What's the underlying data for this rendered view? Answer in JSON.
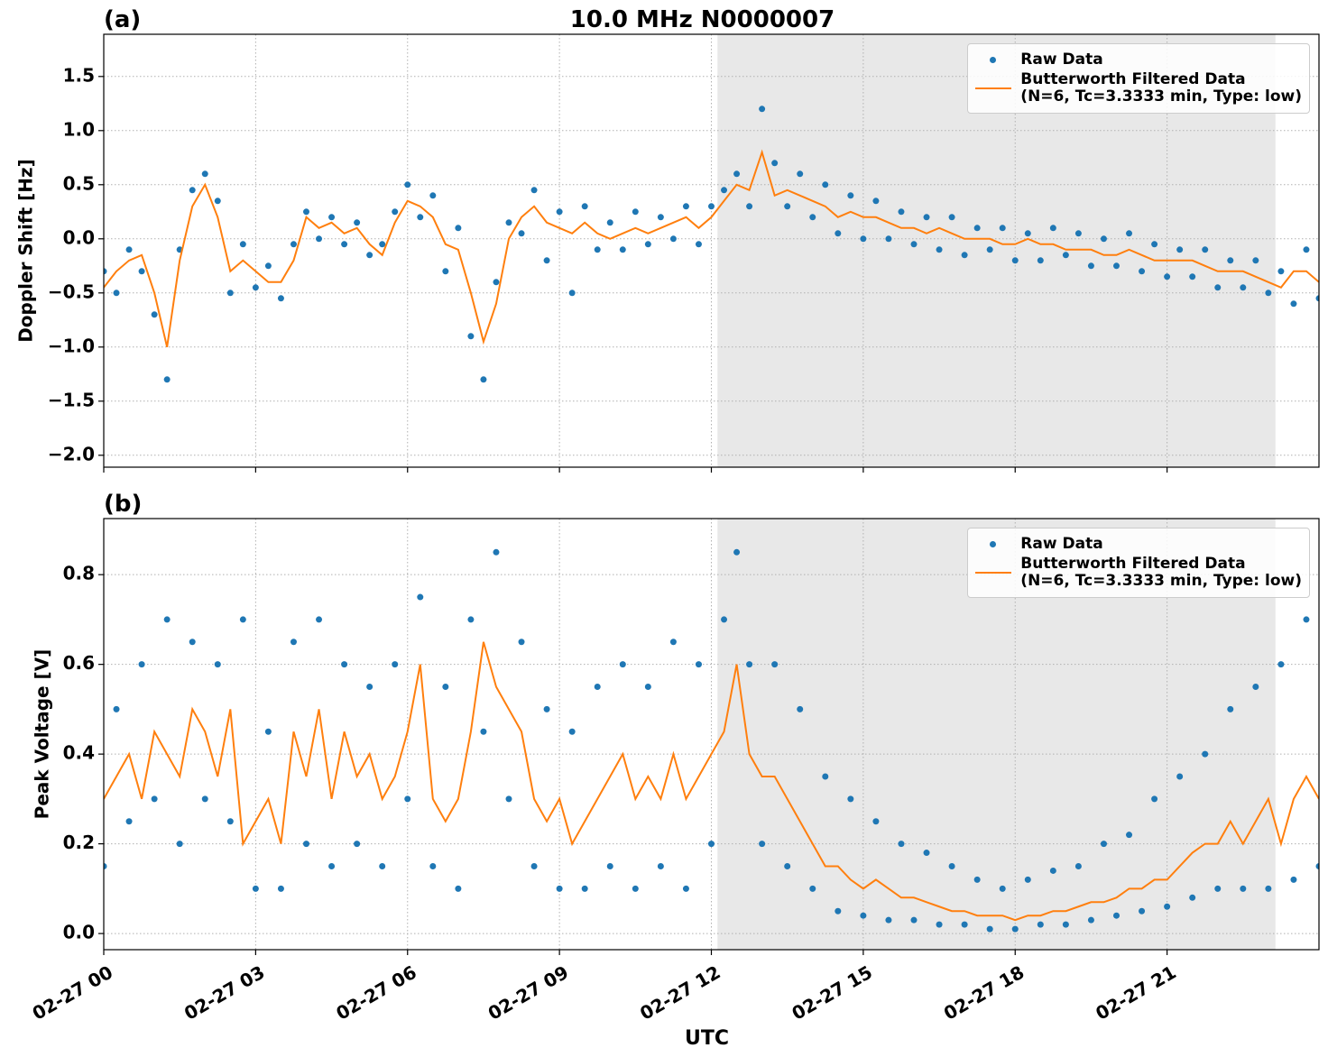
{
  "chart_data": [
    {
      "type": "line",
      "panel_label": "(a)",
      "title": "10.0 MHz N0000007",
      "ylabel": "Doppler Shift [Hz]",
      "x": [
        0,
        0.25,
        0.5,
        0.75,
        1,
        1.25,
        1.5,
        1.75,
        2,
        2.25,
        2.5,
        2.75,
        3,
        3.25,
        3.5,
        3.75,
        4,
        4.25,
        4.5,
        4.75,
        5,
        5.25,
        5.5,
        5.75,
        6,
        6.25,
        6.5,
        6.75,
        7,
        7.25,
        7.5,
        7.75,
        8,
        8.25,
        8.5,
        8.75,
        9,
        9.25,
        9.5,
        9.75,
        10,
        10.25,
        10.5,
        10.75,
        11,
        11.25,
        11.5,
        11.75,
        12,
        12.25,
        12.5,
        12.75,
        13,
        13.25,
        13.5,
        13.75,
        14,
        14.25,
        14.5,
        14.75,
        15,
        15.25,
        15.5,
        15.75,
        16,
        16.25,
        16.5,
        16.75,
        17,
        17.25,
        17.5,
        17.75,
        18,
        18.25,
        18.5,
        18.75,
        19,
        19.25,
        19.5,
        19.75,
        20,
        20.25,
        20.5,
        20.75,
        21,
        21.25,
        21.5,
        21.75,
        22,
        22.25,
        22.5,
        22.75,
        23,
        23.25,
        23.5,
        23.75,
        24
      ],
      "series": [
        {
          "name": "Raw Data",
          "style": "dots",
          "color": "#1f77b4",
          "values": [
            -0.3,
            -0.5,
            -0.1,
            -0.3,
            -0.7,
            -1.3,
            -0.1,
            0.45,
            0.6,
            0.35,
            -0.5,
            -0.05,
            -0.45,
            -0.25,
            -0.55,
            -0.05,
            0.25,
            0.0,
            0.2,
            -0.05,
            0.15,
            -0.15,
            -0.05,
            0.25,
            0.5,
            0.2,
            0.4,
            -0.3,
            0.1,
            -0.9,
            -1.3,
            -0.4,
            0.15,
            0.05,
            0.45,
            -0.2,
            0.25,
            -0.5,
            0.3,
            -0.1,
            0.15,
            -0.1,
            0.25,
            -0.05,
            0.2,
            0.0,
            0.3,
            -0.05,
            0.3,
            0.45,
            0.6,
            0.3,
            1.2,
            0.7,
            0.3,
            0.6,
            0.2,
            0.5,
            0.05,
            0.4,
            0.0,
            0.35,
            0.0,
            0.25,
            -0.05,
            0.2,
            -0.1,
            0.2,
            -0.15,
            0.1,
            -0.1,
            0.1,
            -0.2,
            0.05,
            -0.2,
            0.1,
            -0.15,
            0.05,
            -0.25,
            0.0,
            -0.25,
            0.05,
            -0.3,
            -0.05,
            -0.35,
            -0.1,
            -0.35,
            -0.1,
            -0.45,
            -0.2,
            -0.45,
            -0.2,
            -0.5,
            -0.3,
            -0.6,
            -0.1,
            -0.55
          ]
        },
        {
          "name": "Butterworth Filtered Data\n(N=6, Tc=3.3333 min, Type: low)",
          "style": "line",
          "color": "#ff7f0e",
          "values": [
            -0.45,
            -0.3,
            -0.2,
            -0.15,
            -0.5,
            -1.0,
            -0.2,
            0.3,
            0.5,
            0.2,
            -0.3,
            -0.2,
            -0.3,
            -0.4,
            -0.4,
            -0.2,
            0.2,
            0.1,
            0.15,
            0.05,
            0.1,
            -0.05,
            -0.15,
            0.15,
            0.35,
            0.3,
            0.2,
            -0.05,
            -0.1,
            -0.5,
            -0.95,
            -0.6,
            0.0,
            0.2,
            0.3,
            0.15,
            0.1,
            0.05,
            0.15,
            0.05,
            0.0,
            0.05,
            0.1,
            0.05,
            0.1,
            0.15,
            0.2,
            0.1,
            0.2,
            0.35,
            0.5,
            0.45,
            0.8,
            0.4,
            0.45,
            0.4,
            0.35,
            0.3,
            0.2,
            0.25,
            0.2,
            0.2,
            0.15,
            0.1,
            0.1,
            0.05,
            0.1,
            0.05,
            0.0,
            0.0,
            0.0,
            -0.05,
            -0.05,
            0.0,
            -0.05,
            -0.05,
            -0.1,
            -0.1,
            -0.1,
            -0.15,
            -0.15,
            -0.1,
            -0.15,
            -0.2,
            -0.2,
            -0.2,
            -0.2,
            -0.25,
            -0.3,
            -0.3,
            -0.3,
            -0.35,
            -0.4,
            -0.45,
            -0.3,
            -0.3,
            -0.4
          ]
        }
      ],
      "xlim": [
        0,
        24
      ],
      "xticks": [
        0,
        3,
        6,
        9,
        12,
        15,
        18,
        21
      ],
      "show_xtick_labels": false,
      "ylim": [
        -2.11,
        1.89
      ],
      "yticks": [
        {
          "value": -2,
          "label": "−2.0"
        },
        {
          "value": -1.5,
          "label": "−1.5"
        },
        {
          "value": -1,
          "label": "−1.0"
        },
        {
          "value": -0.5,
          "label": "−0.5"
        },
        {
          "value": 0,
          "label": "0.0"
        },
        0.5,
        {
          "value": 1,
          "label": "1.0"
        },
        1.5
      ],
      "grid": true,
      "legend": "upper right",
      "shade": [
        12.12,
        23.14
      ],
      "shade_color": "#e8e8e8"
    },
    {
      "type": "line",
      "panel_label": "(b)",
      "ylabel": "Peak Voltage [V]",
      "xlabel": "UTC",
      "x": [
        0,
        0.25,
        0.5,
        0.75,
        1,
        1.25,
        1.5,
        1.75,
        2,
        2.25,
        2.5,
        2.75,
        3,
        3.25,
        3.5,
        3.75,
        4,
        4.25,
        4.5,
        4.75,
        5,
        5.25,
        5.5,
        5.75,
        6,
        6.25,
        6.5,
        6.75,
        7,
        7.25,
        7.5,
        7.75,
        8,
        8.25,
        8.5,
        8.75,
        9,
        9.25,
        9.5,
        9.75,
        10,
        10.25,
        10.5,
        10.75,
        11,
        11.25,
        11.5,
        11.75,
        12,
        12.25,
        12.5,
        12.75,
        13,
        13.25,
        13.5,
        13.75,
        14,
        14.25,
        14.5,
        14.75,
        15,
        15.25,
        15.5,
        15.75,
        16,
        16.25,
        16.5,
        16.75,
        17,
        17.25,
        17.5,
        17.75,
        18,
        18.25,
        18.5,
        18.75,
        19,
        19.25,
        19.5,
        19.75,
        20,
        20.25,
        20.5,
        20.75,
        21,
        21.25,
        21.5,
        21.75,
        22,
        22.25,
        22.5,
        22.75,
        23,
        23.25,
        23.5,
        23.75,
        24
      ],
      "series": [
        {
          "name": "Raw Data",
          "style": "dots",
          "color": "#1f77b4",
          "values": [
            0.15,
            0.5,
            0.25,
            0.6,
            0.3,
            0.7,
            0.2,
            0.65,
            0.3,
            0.6,
            0.25,
            0.7,
            0.1,
            0.45,
            0.1,
            0.65,
            0.2,
            0.7,
            0.15,
            0.6,
            0.2,
            0.55,
            0.15,
            0.6,
            0.3,
            0.75,
            0.15,
            0.55,
            0.1,
            0.7,
            0.45,
            0.85,
            0.3,
            0.65,
            0.15,
            0.5,
            0.1,
            0.45,
            0.1,
            0.55,
            0.15,
            0.6,
            0.1,
            0.55,
            0.15,
            0.65,
            0.1,
            0.6,
            0.2,
            0.7,
            0.85,
            0.6,
            0.2,
            0.6,
            0.15,
            0.5,
            0.1,
            0.35,
            0.05,
            0.3,
            0.04,
            0.25,
            0.03,
            0.2,
            0.03,
            0.18,
            0.02,
            0.15,
            0.02,
            0.12,
            0.01,
            0.1,
            0.01,
            0.12,
            0.02,
            0.14,
            0.02,
            0.15,
            0.03,
            0.2,
            0.04,
            0.22,
            0.05,
            0.3,
            0.06,
            0.35,
            0.08,
            0.4,
            0.1,
            0.5,
            0.1,
            0.55,
            0.1,
            0.6,
            0.12,
            0.7,
            0.15
          ]
        },
        {
          "name": "Butterworth Filtered Data\n(N=6, Tc=3.3333 min, Type: low)",
          "style": "line",
          "color": "#ff7f0e",
          "values": [
            0.3,
            0.35,
            0.4,
            0.3,
            0.45,
            0.4,
            0.35,
            0.5,
            0.45,
            0.35,
            0.5,
            0.2,
            0.25,
            0.3,
            0.2,
            0.45,
            0.35,
            0.5,
            0.3,
            0.45,
            0.35,
            0.4,
            0.3,
            0.35,
            0.45,
            0.6,
            0.3,
            0.25,
            0.3,
            0.45,
            0.65,
            0.55,
            0.5,
            0.45,
            0.3,
            0.25,
            0.3,
            0.2,
            0.25,
            0.3,
            0.35,
            0.4,
            0.3,
            0.35,
            0.3,
            0.4,
            0.3,
            0.35,
            0.4,
            0.45,
            0.6,
            0.4,
            0.35,
            0.35,
            0.3,
            0.25,
            0.2,
            0.15,
            0.15,
            0.12,
            0.1,
            0.12,
            0.1,
            0.08,
            0.08,
            0.07,
            0.06,
            0.05,
            0.05,
            0.04,
            0.04,
            0.04,
            0.03,
            0.04,
            0.04,
            0.05,
            0.05,
            0.06,
            0.07,
            0.07,
            0.08,
            0.1,
            0.1,
            0.12,
            0.12,
            0.15,
            0.18,
            0.2,
            0.2,
            0.25,
            0.2,
            0.25,
            0.3,
            0.2,
            0.3,
            0.35,
            0.3
          ]
        }
      ],
      "xlim": [
        0,
        24
      ],
      "xticks": [
        {
          "value": 0,
          "label": "02-27 00"
        },
        {
          "value": 3,
          "label": "02-27 03"
        },
        {
          "value": 6,
          "label": "02-27 06"
        },
        {
          "value": 9,
          "label": "02-27 09"
        },
        {
          "value": 12,
          "label": "02-27 12"
        },
        {
          "value": 15,
          "label": "02-27 15"
        },
        {
          "value": 18,
          "label": "02-27 18"
        },
        {
          "value": 21,
          "label": "02-27 21"
        }
      ],
      "show_xtick_labels": true,
      "ylim": [
        -0.036,
        0.925
      ],
      "yticks": [
        {
          "value": 0,
          "label": "0.0"
        },
        0.2,
        0.4,
        0.6,
        0.8
      ],
      "grid": true,
      "legend": "upper right",
      "shade": [
        12.12,
        23.14
      ],
      "shade_color": "#e8e8e8"
    }
  ]
}
